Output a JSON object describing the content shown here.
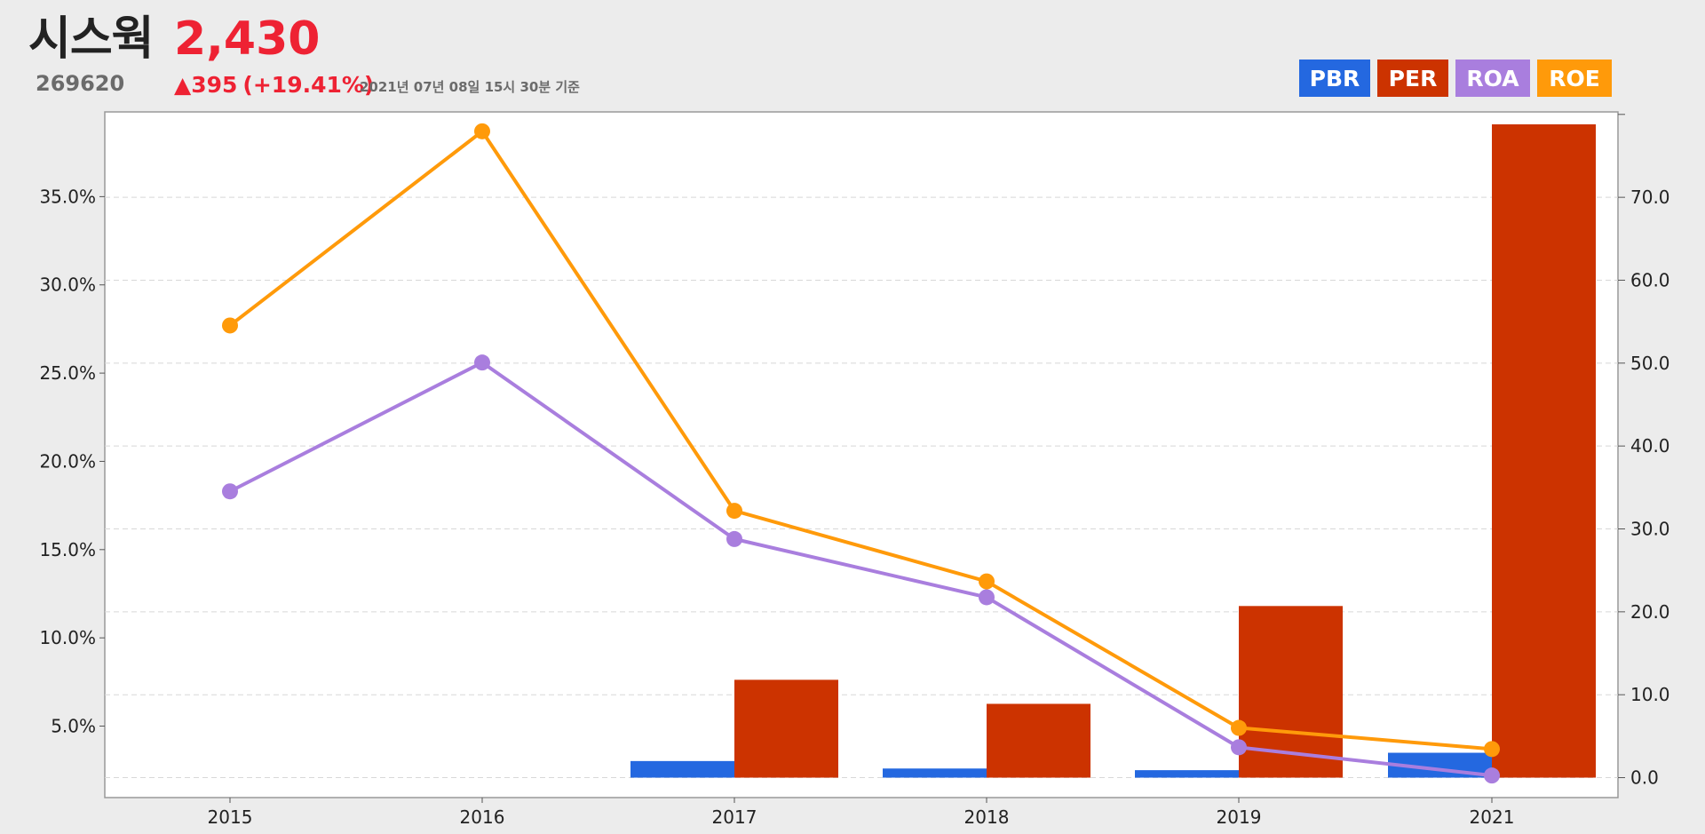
{
  "header": {
    "name": "시스웍",
    "price": "2,430",
    "code": "269620",
    "change": "▲395",
    "change_pct": "(+19.41%)",
    "date": "2021년 07년 08일 15시 30분 기준"
  },
  "legend": [
    {
      "label": "PBR",
      "color": "#2468e0"
    },
    {
      "label": "PER",
      "color": "#cc3300"
    },
    {
      "label": "ROA",
      "color": "#a97ede"
    },
    {
      "label": "ROE",
      "color": "#ff9a0a"
    }
  ],
  "chart_data": {
    "type": "bar",
    "categories": [
      "2015",
      "2016",
      "2017",
      "2018",
      "2019",
      "2021"
    ],
    "left_axis": {
      "ticks": [
        "5.0%",
        "10.0%",
        "15.0%",
        "20.0%",
        "25.0%",
        "30.0%",
        "35.0%"
      ],
      "range": [
        1.0,
        39.8
      ]
    },
    "right_axis": {
      "ticks": [
        "0.0",
        "10.0",
        "20.0",
        "30.0",
        "40.0",
        "50.0",
        "60.0",
        "70.0"
      ],
      "range": [
        -2.3,
        80.3
      ]
    },
    "grid": true,
    "legend_position": "top-right",
    "series": [
      {
        "name": "PBR",
        "type": "bar",
        "axis": "right",
        "color": "#2468e0",
        "values": [
          null,
          null,
          2.0,
          1.1,
          0.9,
          3.0
        ]
      },
      {
        "name": "PER",
        "type": "bar",
        "axis": "right",
        "color": "#cc3300",
        "values": [
          null,
          null,
          11.8,
          8.9,
          20.7,
          78.8
        ]
      },
      {
        "name": "ROA",
        "type": "line",
        "axis": "left",
        "color": "#a97ede",
        "values": [
          18.3,
          25.6,
          15.6,
          12.3,
          3.8,
          2.2
        ]
      },
      {
        "name": "ROE",
        "type": "line",
        "axis": "left",
        "color": "#ff9a0a",
        "values": [
          27.7,
          38.7,
          17.2,
          13.2,
          4.9,
          3.7
        ]
      }
    ]
  }
}
